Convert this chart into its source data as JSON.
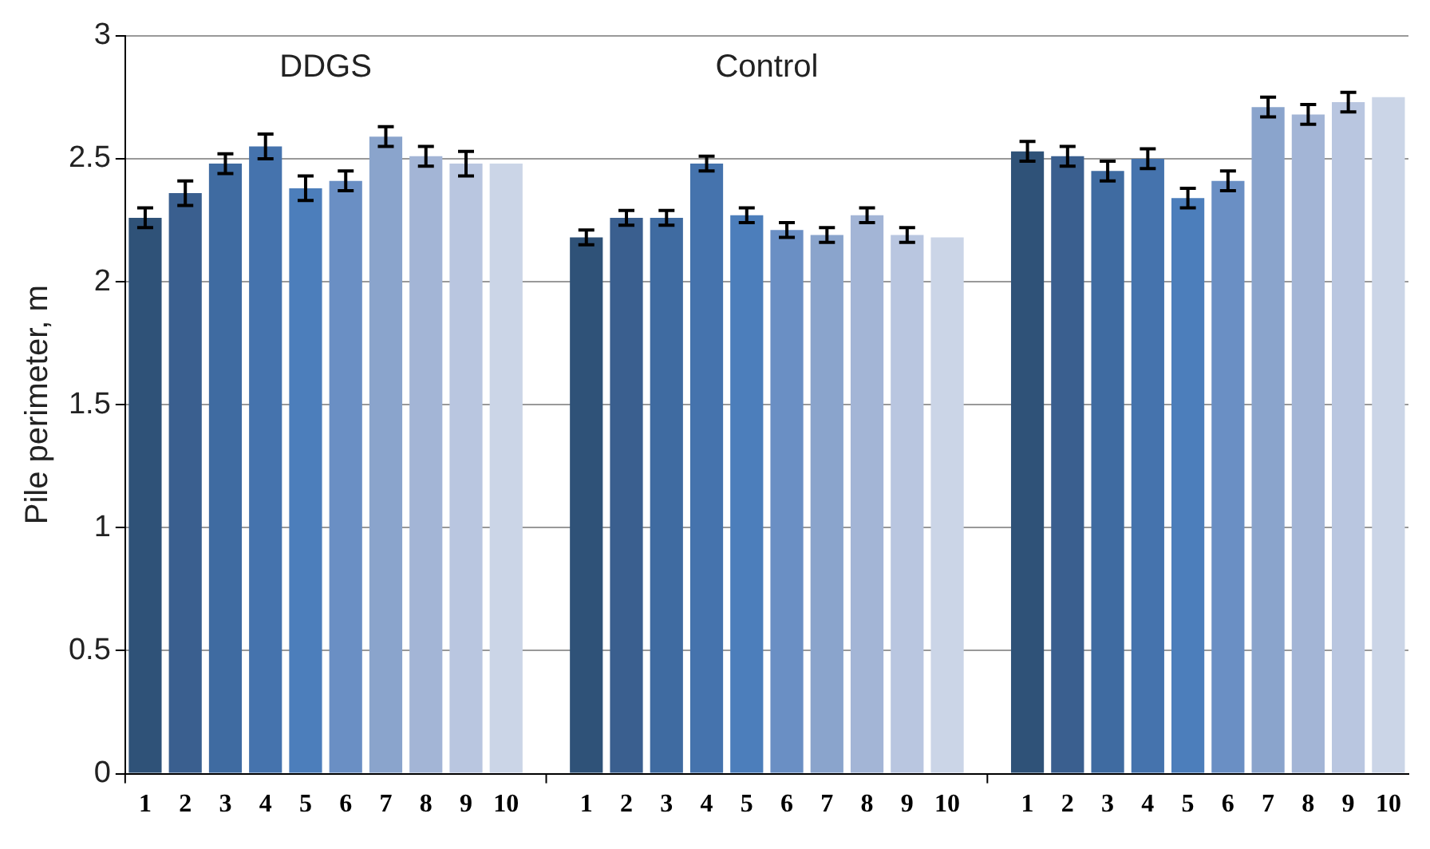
{
  "chart_data": {
    "type": "bar",
    "ylabel": "Pile perimeter, m",
    "categories": [
      "1",
      "2",
      "3",
      "4",
      "5",
      "6",
      "7",
      "8",
      "9",
      "10",
      null,
      "1",
      "2",
      "3",
      "4",
      "5",
      "6",
      "7",
      "8",
      "9",
      "10",
      null,
      "1",
      "2",
      "3",
      "4",
      "5",
      "6",
      "7",
      "8",
      "9",
      "10"
    ],
    "values": [
      2.26,
      2.36,
      2.48,
      2.55,
      2.38,
      2.41,
      2.59,
      2.51,
      2.48,
      2.48,
      null,
      2.18,
      2.26,
      2.26,
      2.48,
      2.27,
      2.21,
      2.19,
      2.27,
      2.19,
      2.18,
      null,
      2.53,
      2.51,
      2.45,
      2.5,
      2.34,
      2.41,
      2.71,
      2.68,
      2.73,
      2.75
    ],
    "errors": [
      0.04,
      0.05,
      0.04,
      0.05,
      0.05,
      0.04,
      0.04,
      0.04,
      0.05,
      null,
      null,
      0.03,
      0.03,
      0.03,
      0.03,
      0.03,
      0.03,
      0.03,
      0.03,
      0.03,
      null,
      null,
      0.04,
      0.04,
      0.04,
      0.04,
      0.04,
      0.04,
      0.04,
      0.04,
      0.04,
      null
    ],
    "colors": [
      "#2f5278",
      "#3a5f8f",
      "#3f6ba1",
      "#4573ad",
      "#4c7ebb",
      "#6a8fc4",
      "#8aa4cc",
      "#a3b5d6",
      "#b9c6e0",
      "#cbd5e7",
      null,
      "#2f5278",
      "#3a5f8f",
      "#3f6ba1",
      "#4573ad",
      "#4c7ebb",
      "#6a8fc4",
      "#8aa4cc",
      "#a3b5d6",
      "#b9c6e0",
      "#cbd5e7",
      null,
      "#2f5278",
      "#3a5f8f",
      "#3f6ba1",
      "#4573ad",
      "#4c7ebb",
      "#6a8fc4",
      "#8aa4cc",
      "#a3b5d6",
      "#b9c6e0",
      "#cbd5e7"
    ],
    "annotations": [
      "DDGS",
      "Control"
    ],
    "ylim": [
      0,
      3
    ],
    "yticks": [
      0,
      0.5,
      1,
      1.5,
      2,
      2.5,
      3
    ],
    "grid": "y",
    "legend": false
  }
}
